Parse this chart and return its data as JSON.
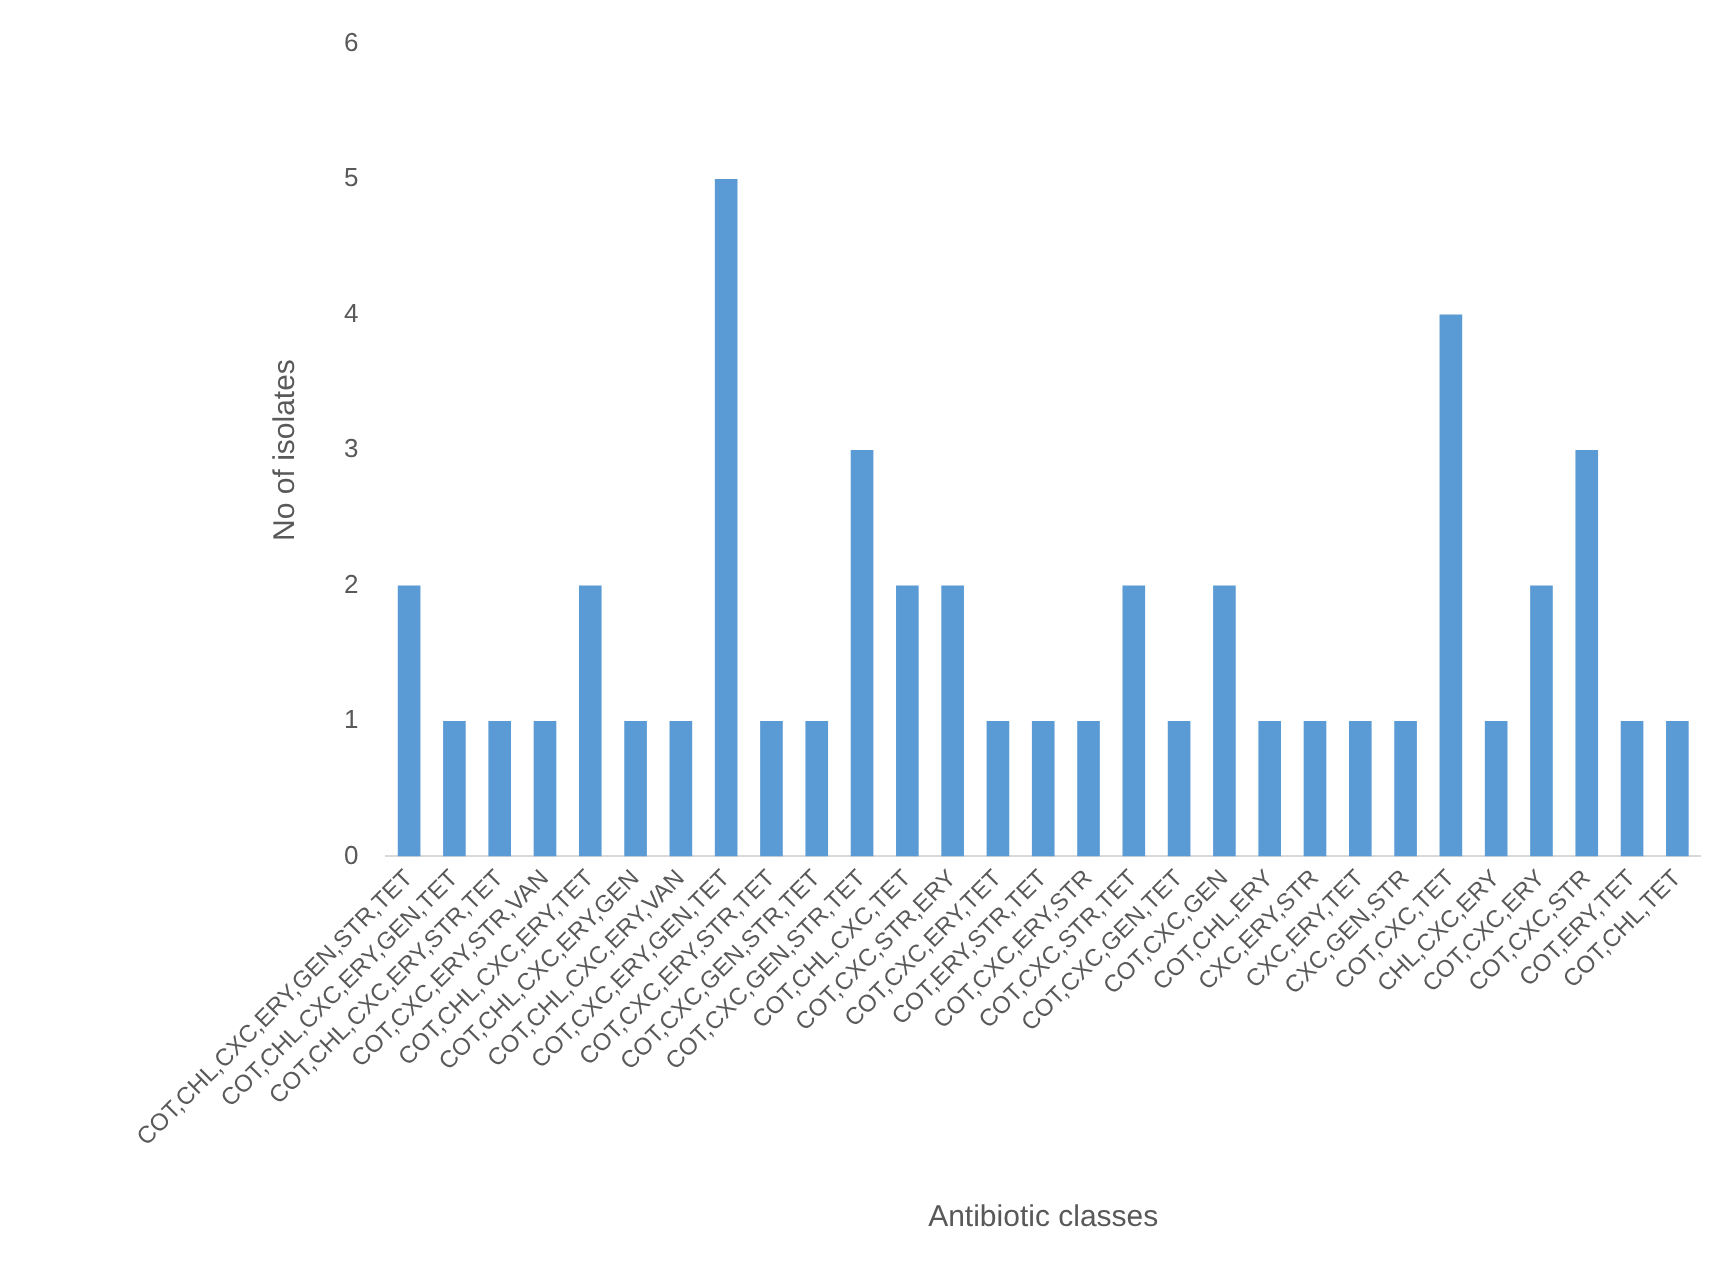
{
  "chart_data": {
    "type": "bar",
    "xlabel": "Antibiotic classes",
    "ylabel": "No of isolates",
    "categories": [
      "COT,CHL,CXC,ERY,GEN,STR,TET",
      "COT,CHL,CXC,ERY,GEN,TET",
      "COT,CHL,CXC,ERY,STR,TET",
      "COT,CXC,ERY,STR,VAN",
      "COT,CHL,CXC,ERY,TET",
      "COT,CHL,CXC,ERY,GEN",
      "COT,CHL,CXC,ERY,VAN",
      "COT,CXC,ERY,GEN,TET",
      "COT,CXC,ERY,STR,TET",
      "COT,CXC,GEN,STR,TET",
      "COT,CXC,GEN,STR,TET",
      "COT,CHL,CXC,TET",
      "COT,CXC,STR,ERY",
      "COT,CXC,ERY,TET",
      "COT,ERY,STR,TET",
      "COT,CXC,ERY,STR",
      "COT,CXC,STR,TET",
      "COT,CXC,GEN,TET",
      "COT,CXC,GEN",
      "COT,CHL,ERY",
      "CXC,ERY,STR",
      "CXC,ERY,TET",
      "CXC,GEN,STR",
      "COT,CXC,TET",
      "CHL,CXC,ERY",
      "COT,CXC,ERY",
      "COT,CXC,STR",
      "COT,ERY,TET",
      "COT,CHL,TET"
    ],
    "values": [
      2,
      1,
      1,
      1,
      2,
      1,
      1,
      5,
      1,
      1,
      3,
      2,
      2,
      1,
      1,
      1,
      2,
      1,
      2,
      1,
      1,
      1,
      1,
      4,
      1,
      2,
      3,
      1,
      1
    ],
    "color": "#5b9bd5",
    "ylim": [
      0,
      6
    ],
    "yticks": [
      0,
      1,
      2,
      3,
      4,
      5,
      6
    ],
    "grid": false,
    "legend": false
  }
}
